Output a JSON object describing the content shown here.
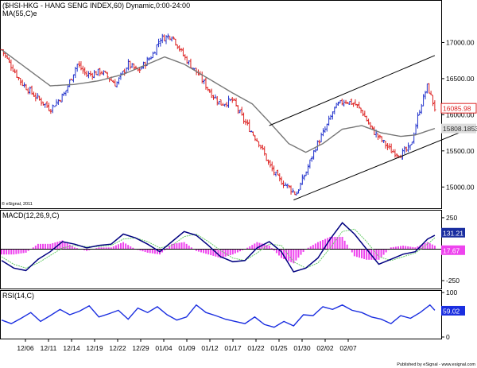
{
  "chart_data": [
    {
      "type": "candlestick",
      "title": "($HSI-HKG - HANG SENG INDEX,60) Dynamic,0:00-24:00",
      "overlay_label": "MA(55,C)e",
      "copyright": "© eSignal, 2011",
      "ylim": [
        14750,
        17500
      ],
      "y_ticks": [
        15000,
        15500,
        16000,
        16500,
        17000
      ],
      "y_tick_labels": [
        "15000.00",
        "15500.00",
        "16000.00",
        "16500.00",
        "17000.00"
      ],
      "last_price": "16085.98",
      "ma_value": "15808.1853",
      "colors": {
        "up": "#2233cc",
        "down": "#dd2222",
        "ma": "#777777",
        "channel": "#000000",
        "last_badge": "#dd2222"
      },
      "close_path": [
        [
          0,
          16900
        ],
        [
          8,
          16450
        ],
        [
          14,
          16250
        ],
        [
          20,
          16080
        ],
        [
          26,
          16300
        ],
        [
          31,
          16700
        ],
        [
          35,
          16550
        ],
        [
          41,
          16600
        ],
        [
          47,
          16420
        ],
        [
          52,
          16700
        ],
        [
          56,
          16600
        ],
        [
          62,
          16830
        ],
        [
          65,
          17050
        ],
        [
          70,
          17100
        ],
        [
          75,
          16800
        ],
        [
          81,
          16550
        ],
        [
          86,
          16300
        ],
        [
          90,
          16150
        ],
        [
          95,
          16200
        ],
        [
          99,
          15950
        ],
        [
          103,
          15750
        ],
        [
          106,
          15600
        ],
        [
          110,
          15300
        ],
        [
          114,
          15100
        ],
        [
          118,
          15000
        ],
        [
          121,
          14900
        ],
        [
          125,
          15200
        ],
        [
          129,
          15550
        ],
        [
          133,
          15800
        ],
        [
          137,
          16100
        ],
        [
          141,
          16200
        ],
        [
          145,
          16150
        ],
        [
          148,
          16050
        ],
        [
          152,
          15800
        ],
        [
          156,
          15650
        ],
        [
          160,
          15500
        ],
        [
          164,
          15450
        ],
        [
          168,
          15550
        ],
        [
          172,
          16100
        ],
        [
          175,
          16400
        ],
        [
          178,
          16090
        ]
      ],
      "ma_path": [
        [
          0,
          16900
        ],
        [
          10,
          16650
        ],
        [
          20,
          16400
        ],
        [
          30,
          16420
        ],
        [
          40,
          16470
        ],
        [
          50,
          16560
        ],
        [
          60,
          16700
        ],
        [
          67,
          16800
        ],
        [
          75,
          16700
        ],
        [
          85,
          16500
        ],
        [
          95,
          16300
        ],
        [
          103,
          16150
        ],
        [
          110,
          15900
        ],
        [
          118,
          15600
        ],
        [
          125,
          15480
        ],
        [
          132,
          15600
        ],
        [
          140,
          15800
        ],
        [
          148,
          15850
        ],
        [
          156,
          15750
        ],
        [
          164,
          15700
        ],
        [
          170,
          15720
        ],
        [
          178,
          15810
        ]
      ],
      "channel_upper": [
        [
          110,
          15850
        ],
        [
          178,
          16820
        ]
      ],
      "channel_lower": [
        [
          120,
          14820
        ],
        [
          188,
          15750
        ]
      ]
    },
    {
      "type": "line",
      "title": "MACD(12,26,9,C)",
      "ylim": [
        -300,
        300
      ],
      "y_ticks": [
        250,
        -250
      ],
      "y_tick_labels": [
        "250",
        "-250"
      ],
      "macd_value": "131.21",
      "hist_value": "17.67",
      "colors": {
        "macd": "#000080",
        "signal": "#66cc66",
        "histogram": "#ee44ee",
        "macd_badge": "#1a2ea0",
        "hist_badge": "#ee44ee"
      },
      "series_x": [
        0,
        5,
        10,
        15,
        20,
        25,
        30,
        35,
        40,
        45,
        50,
        55,
        60,
        65,
        70,
        75,
        80,
        85,
        90,
        95,
        100,
        105,
        110,
        115,
        120,
        125,
        130,
        135,
        140,
        145,
        150,
        155,
        160,
        165,
        170,
        175,
        178
      ],
      "macd": [
        -90,
        -150,
        -170,
        -80,
        -20,
        60,
        40,
        10,
        30,
        40,
        120,
        90,
        40,
        -20,
        60,
        140,
        110,
        30,
        -60,
        -100,
        -90,
        10,
        60,
        -20,
        -180,
        -150,
        -70,
        80,
        210,
        120,
        0,
        -120,
        -80,
        -40,
        -20,
        80,
        110
      ],
      "signal": [
        -60,
        -120,
        -150,
        -110,
        -50,
        10,
        30,
        20,
        20,
        30,
        80,
        90,
        60,
        10,
        30,
        100,
        120,
        60,
        -10,
        -70,
        -90,
        -30,
        40,
        30,
        -100,
        -150,
        -110,
        10,
        140,
        160,
        60,
        -60,
        -90,
        -60,
        -30,
        40,
        90
      ]
    },
    {
      "type": "line",
      "title": "RSI(14,C)",
      "ylim": [
        0,
        100
      ],
      "y_ticks": [
        100,
        0
      ],
      "y_tick_labels": [
        "100",
        "0"
      ],
      "rsi_value": "59.02",
      "colors": {
        "rsi": "#1a2ee0",
        "rsi_badge": "#1a2ee0"
      },
      "series_x": [
        0,
        4,
        8,
        12,
        16,
        20,
        24,
        28,
        32,
        36,
        40,
        44,
        48,
        52,
        56,
        60,
        64,
        68,
        72,
        76,
        80,
        84,
        88,
        92,
        96,
        100,
        104,
        108,
        112,
        116,
        120,
        124,
        128,
        132,
        136,
        140,
        144,
        148,
        152,
        156,
        160,
        164,
        168,
        172,
        176,
        178
      ],
      "rsi": [
        38,
        30,
        42,
        55,
        35,
        48,
        62,
        50,
        58,
        70,
        45,
        52,
        60,
        40,
        65,
        55,
        68,
        50,
        38,
        45,
        72,
        55,
        48,
        40,
        35,
        30,
        45,
        28,
        22,
        35,
        25,
        50,
        48,
        68,
        62,
        72,
        60,
        55,
        45,
        40,
        30,
        48,
        42,
        55,
        72,
        60
      ]
    }
  ],
  "x_axis": {
    "ticks": [
      "12/06",
      "12/11",
      "12/14",
      "12/19",
      "12/22",
      "12/29",
      "01/04",
      "01/09",
      "01/12",
      "01/17",
      "01/22",
      "01/25",
      "01/30",
      "02/02",
      "02/07"
    ]
  },
  "footer": {
    "published": "Published by eSignal - www.esignal.com"
  }
}
